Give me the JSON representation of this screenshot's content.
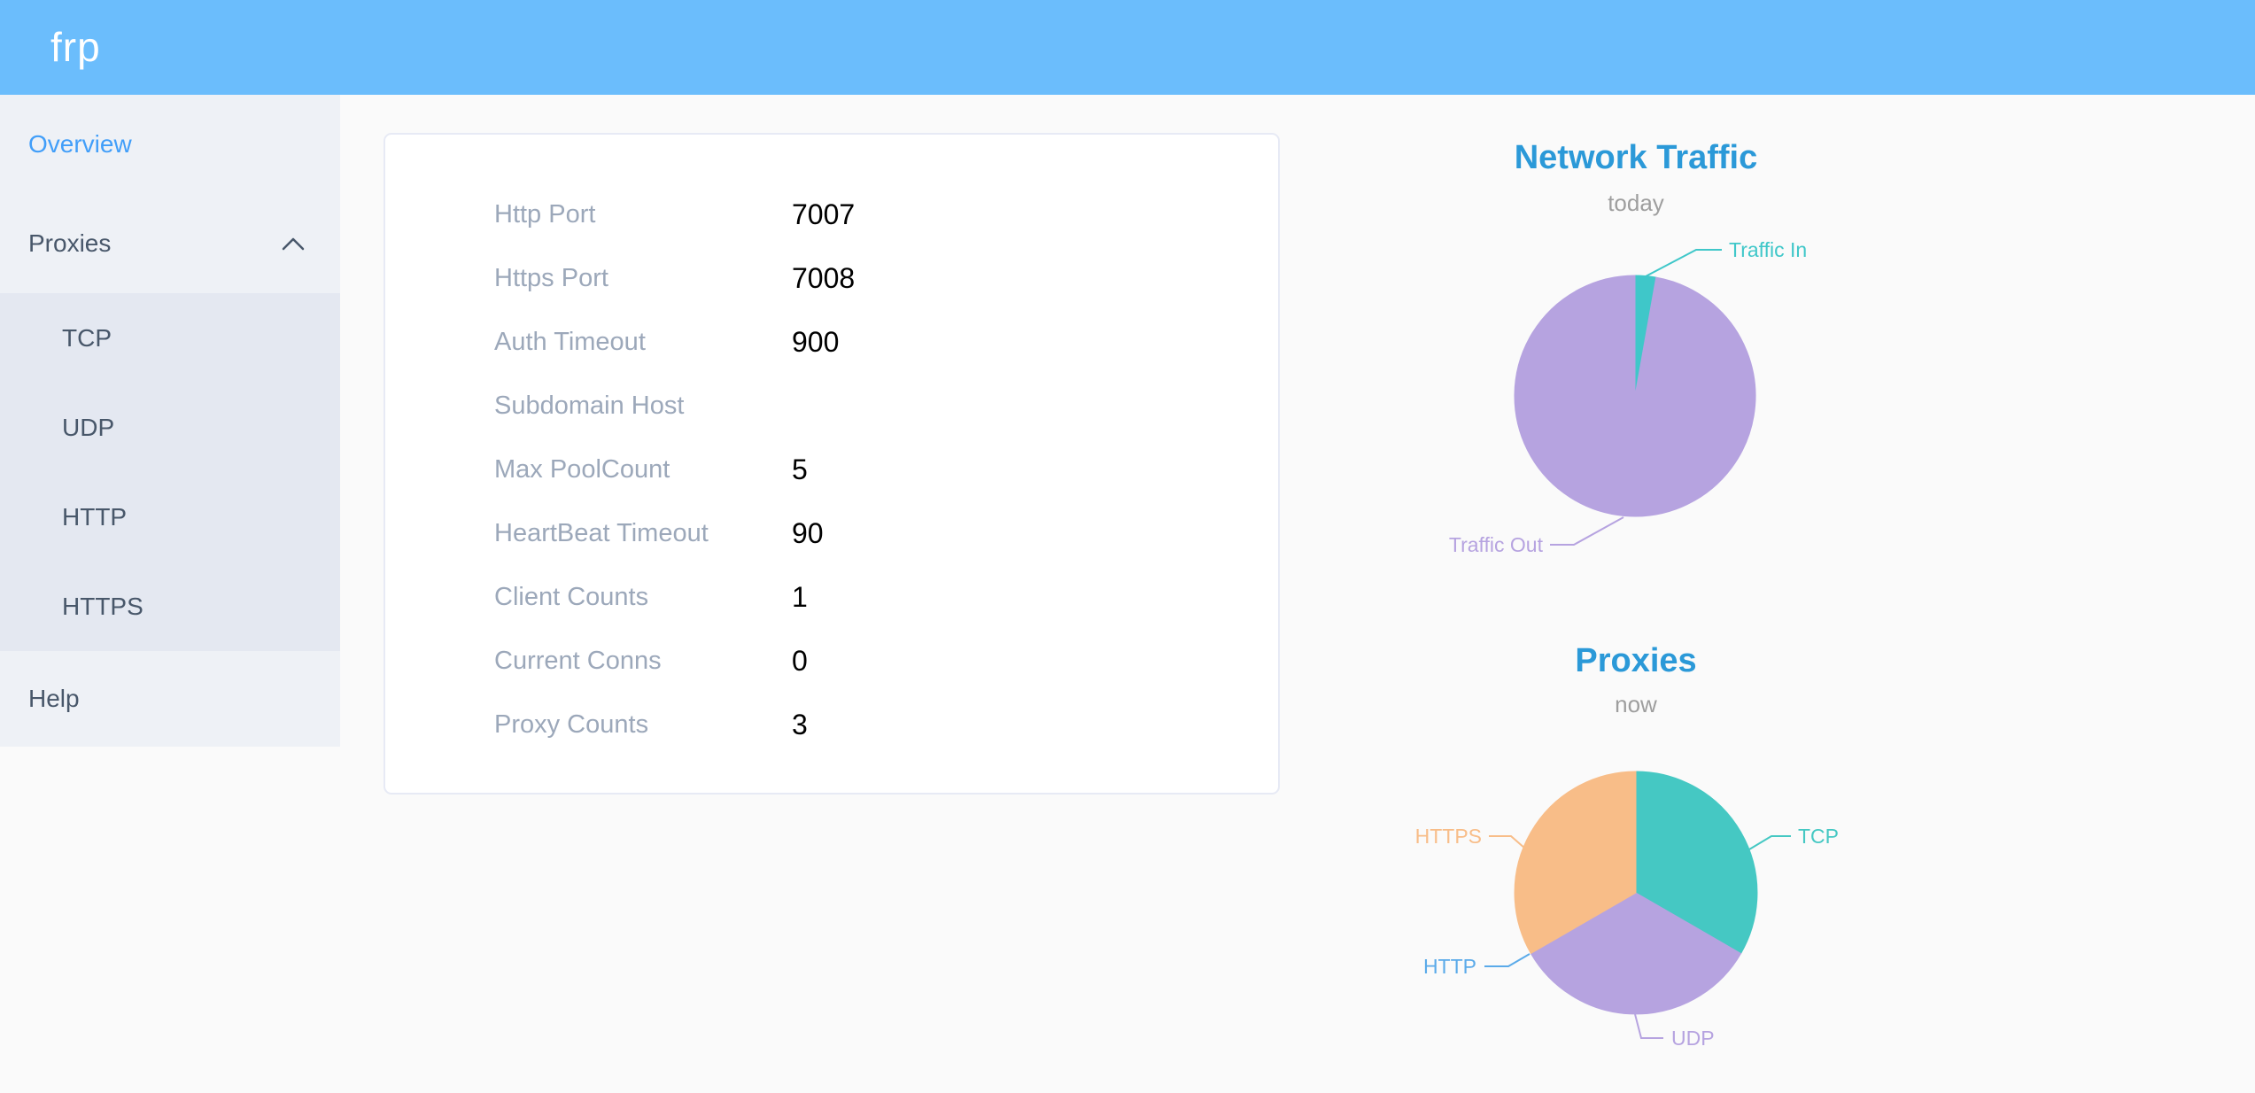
{
  "header": {
    "logo": "frp"
  },
  "sidebar": {
    "items": [
      {
        "label": "Overview",
        "active": true
      },
      {
        "label": "Proxies",
        "expanded": true,
        "children": [
          "TCP",
          "UDP",
          "HTTP",
          "HTTPS"
        ]
      },
      {
        "label": "Help"
      }
    ]
  },
  "overview_card": {
    "rows": [
      {
        "label": "Http Port",
        "value": "7007"
      },
      {
        "label": "Https Port",
        "value": "7008"
      },
      {
        "label": "Auth Timeout",
        "value": "900"
      },
      {
        "label": "Subdomain Host",
        "value": ""
      },
      {
        "label": "Max PoolCount",
        "value": "5"
      },
      {
        "label": "HeartBeat Timeout",
        "value": "90"
      },
      {
        "label": "Client Counts",
        "value": "1"
      },
      {
        "label": "Current Conns",
        "value": "0"
      },
      {
        "label": "Proxy Counts",
        "value": "3"
      }
    ]
  },
  "chart_data": [
    {
      "type": "pie",
      "title": "Network Traffic",
      "subtitle": "today",
      "legend_position": "none",
      "labels": "leader-lines",
      "values_are": "estimated percent share read from slice angles",
      "series": [
        {
          "name": "Traffic In",
          "value": 2.8,
          "color": "#3fc7c9"
        },
        {
          "name": "Traffic Out",
          "value": 97.2,
          "color": "#b6a3e0"
        }
      ]
    },
    {
      "type": "pie",
      "title": "Proxies",
      "subtitle": "now",
      "legend_position": "none",
      "labels": "leader-lines",
      "values_are": "proxy counts by type (three equal slices, HTTP empty)",
      "series": [
        {
          "name": "TCP",
          "value": 1,
          "color": "#45c8c3"
        },
        {
          "name": "UDP",
          "value": 1,
          "color": "#b6a3e0"
        },
        {
          "name": "HTTP",
          "value": 0,
          "color": "#5aaae9"
        },
        {
          "name": "HTTPS",
          "value": 1,
          "color": "#f8bd88"
        }
      ]
    }
  ],
  "colors": {
    "header_bg": "#6bbdfc",
    "sidebar_bg": "#eef1f6",
    "submenu_bg": "#e4e8f1",
    "menu_text": "#48576a",
    "active_menu_text": "#419ef9",
    "chart_title_blue": "#2b99d8",
    "chart_subtitle_gray": "#9e9e9e",
    "card_label_gray": "#9ca8ba"
  }
}
